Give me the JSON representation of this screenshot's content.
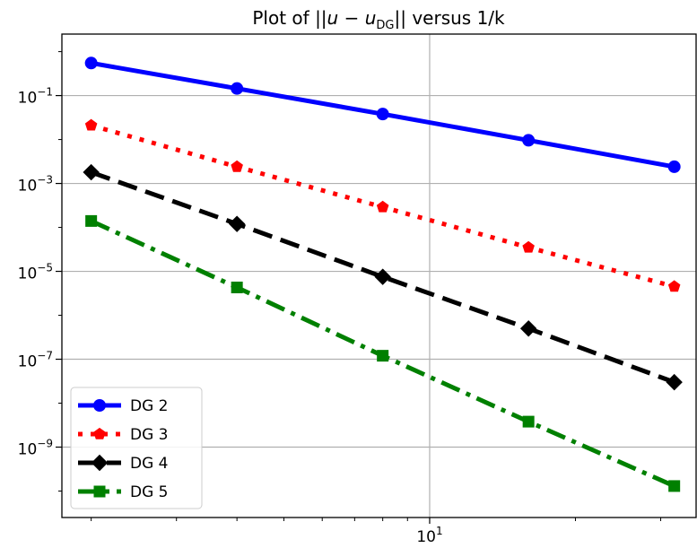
{
  "chart_data": {
    "type": "line",
    "title": {
      "prefix": "Plot of ||",
      "sym_a": "u",
      "minus": " − ",
      "sym_b": "u",
      "sub_b": "DG",
      "suffix": "|| versus 1/k"
    },
    "xscale": "log",
    "yscale": "log",
    "x": [
      2,
      4,
      8,
      16,
      32
    ],
    "xlim": [
      1.74,
      35.5
    ],
    "ylim": [
      2.5e-11,
      2.51
    ],
    "grid": true,
    "legend_position": "lower-left",
    "x_ticks": [
      {
        "base": "10",
        "exp": "1",
        "value": 10
      }
    ],
    "y_ticks": [
      {
        "base": "10",
        "exp": "−1",
        "value": 0.1
      },
      {
        "base": "10",
        "exp": "−3",
        "value": 0.001
      },
      {
        "base": "10",
        "exp": "−5",
        "value": 1e-05
      },
      {
        "base": "10",
        "exp": "−7",
        "value": 1e-07
      },
      {
        "base": "10",
        "exp": "−9",
        "value": 1e-09
      }
    ],
    "series": [
      {
        "name": "DG 2",
        "values": [
          0.55,
          0.145,
          0.038,
          0.0096,
          0.0024
        ],
        "color": "#0000ff",
        "dash": "solid",
        "marker": "circle"
      },
      {
        "name": "DG 3",
        "values": [
          0.021,
          0.0024,
          0.00029,
          3.5e-05,
          4.5e-06
        ],
        "color": "#ff0000",
        "dash": "dotted",
        "marker": "pentagon"
      },
      {
        "name": "DG 4",
        "values": [
          0.0018,
          0.00012,
          7.5e-06,
          5e-07,
          3e-08
        ],
        "color": "#000000",
        "dash": "dashed",
        "marker": "diamond"
      },
      {
        "name": "DG 5",
        "values": [
          0.00014,
          4.3e-06,
          1.2e-07,
          3.8e-09,
          1.3e-10
        ],
        "color": "#008000",
        "dash": "dashdot",
        "marker": "square"
      }
    ]
  }
}
